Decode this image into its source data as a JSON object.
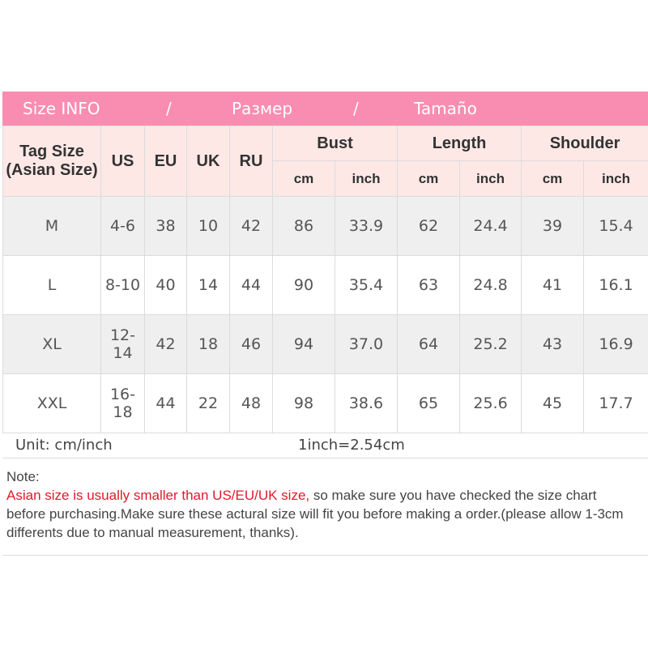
{
  "banner": {
    "en": "Size INFO",
    "sep": "/",
    "ru": "Размер",
    "es": "Tamaño",
    "color": "#f98db1"
  },
  "header": {
    "tag_size": "Tag Size",
    "tag_size_sub": "(Asian Size)",
    "us": "US",
    "eu": "EU",
    "uk": "UK",
    "ru": "RU",
    "bust": "Bust",
    "length": "Length",
    "shoulder": "Shoulder",
    "cm": "cm",
    "inch": "inch"
  },
  "rows": [
    [
      "M",
      "4-6",
      "38",
      "10",
      "42",
      "86",
      "33.9",
      "62",
      "24.4",
      "39",
      "15.4"
    ],
    [
      "L",
      "8-10",
      "40",
      "14",
      "44",
      "90",
      "35.4",
      "63",
      "24.8",
      "41",
      "16.1"
    ],
    [
      "XL",
      "12-14",
      "42",
      "18",
      "46",
      "94",
      "37.0",
      "64",
      "25.2",
      "43",
      "16.9"
    ],
    [
      "XXL",
      "16-18",
      "44",
      "22",
      "48",
      "98",
      "38.6",
      "65",
      "25.6",
      "45",
      "17.7"
    ]
  ],
  "unit": {
    "label": "Unit: cm/inch",
    "conversion": "1inch=2.54cm"
  },
  "note": {
    "title": "Note:",
    "warning": "Asian size is usually smaller than US/EU/UK size,",
    "text": " so make sure you have checked the size chart before purchasing.Make sure these actural size will fit you before making a order.(please allow 1-3cm differents due to manual measurement, thanks)."
  }
}
